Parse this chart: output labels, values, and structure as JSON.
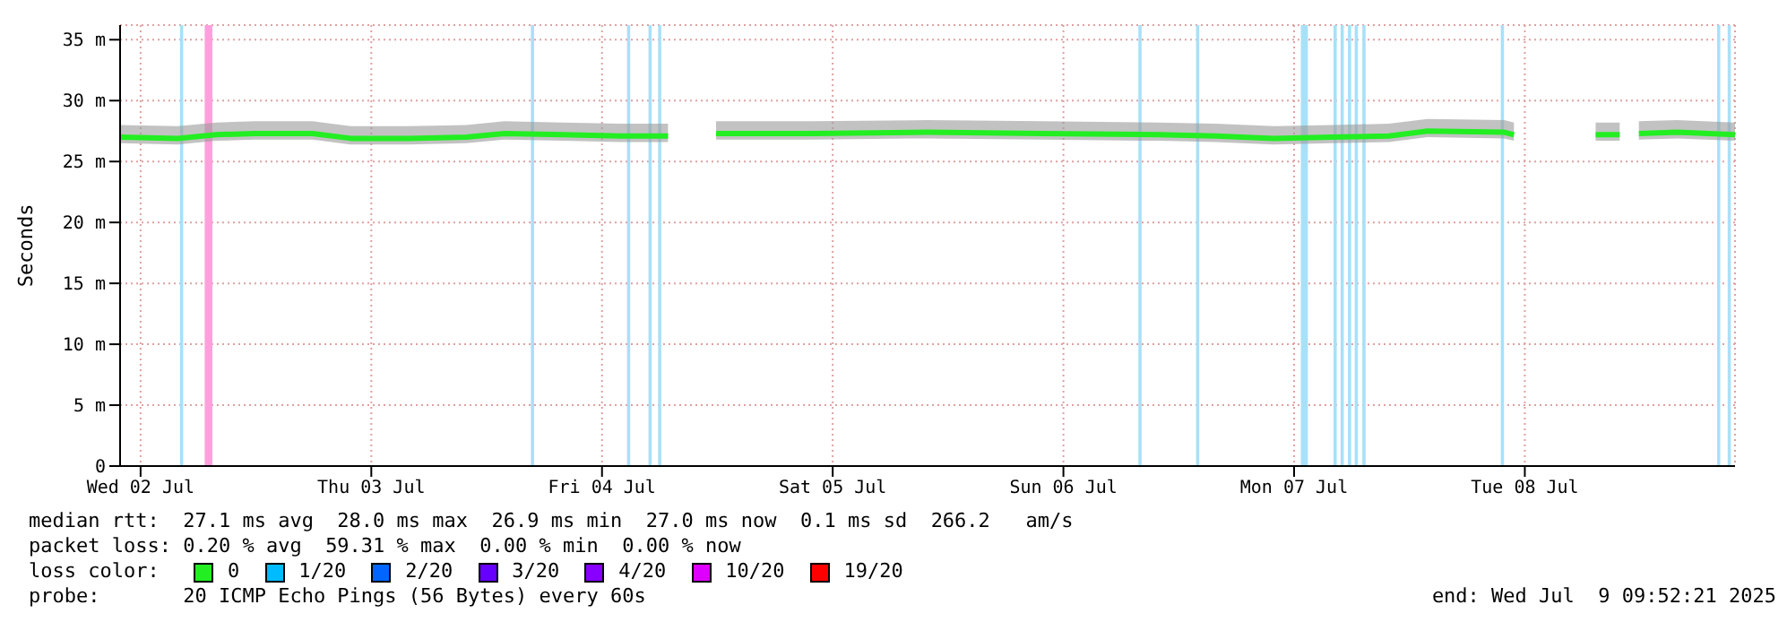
{
  "chart_data": {
    "type": "line",
    "ylabel": "Seconds",
    "x": [
      "2025-07-02T09:52",
      "2025-07-02T15:52",
      "2025-07-02T19:52",
      "2025-07-02T23:52",
      "2025-07-03T05:52",
      "2025-07-03T09:52",
      "2025-07-03T15:52",
      "2025-07-03T21:52",
      "2025-07-04T01:52",
      "2025-07-04T07:52",
      "2025-07-04T13:52",
      "2025-07-04T18:52",
      "2025-07-04T19:52",
      "2025-07-04T23:52",
      "2025-07-05T09:52",
      "2025-07-05T21:52",
      "2025-07-06T09:52",
      "2025-07-06T21:52",
      "2025-07-07T03:52",
      "2025-07-07T09:52",
      "2025-07-07T15:52",
      "2025-07-07T21:52",
      "2025-07-08T01:52",
      "2025-07-08T09:52",
      "2025-07-08T10:52",
      "2025-07-08T11:52",
      "2025-07-08T19:22",
      "2025-07-08T21:52",
      "2025-07-08T22:52",
      "2025-07-08T23:52",
      "2025-07-09T03:52",
      "2025-07-09T09:52"
    ],
    "series": [
      {
        "name": "0",
        "color": "#22ee22",
        "values": [
          27.0,
          26.9,
          27.2,
          27.3,
          27.3,
          26.9,
          26.9,
          27.0,
          27.3,
          27.2,
          27.1,
          27.1,
          null,
          27.3,
          27.3,
          27.4,
          27.3,
          27.2,
          27.1,
          26.9,
          27.0,
          27.1,
          27.5,
          27.4,
          27.2,
          null,
          27.2,
          27.2,
          null,
          27.3,
          27.4,
          27.2
        ],
        "lower": [
          26.5,
          26.4,
          26.7,
          26.8,
          26.8,
          26.4,
          26.4,
          26.5,
          26.8,
          26.7,
          26.6,
          26.6,
          null,
          26.8,
          26.8,
          26.9,
          26.8,
          26.7,
          26.6,
          26.4,
          26.5,
          26.6,
          27.0,
          26.9,
          26.7,
          null,
          26.7,
          26.7,
          null,
          26.8,
          26.9,
          26.7
        ],
        "upper": [
          28.0,
          27.9,
          28.2,
          28.3,
          28.3,
          27.9,
          27.9,
          28.0,
          28.3,
          28.2,
          28.1,
          28.1,
          null,
          28.3,
          28.3,
          28.4,
          28.3,
          28.2,
          28.1,
          27.9,
          28.0,
          28.1,
          28.5,
          28.4,
          28.2,
          null,
          28.2,
          28.2,
          null,
          28.3,
          28.4,
          28.2
        ]
      },
      {
        "name": "1/20",
        "color": "#00bbff",
        "values": [
          null,
          null,
          null,
          null,
          null,
          null,
          null,
          null,
          null,
          null,
          null,
          null,
          null,
          null,
          null,
          null,
          null,
          null,
          null,
          null,
          null,
          null,
          null,
          null,
          null,
          null,
          null,
          null,
          null,
          null,
          null,
          null
        ]
      },
      {
        "name": "2/20",
        "color": "#0066ff",
        "values": [
          null,
          null,
          null,
          null,
          null,
          null,
          null,
          null,
          null,
          null,
          null,
          null,
          null,
          null,
          null,
          null,
          null,
          null,
          null,
          null,
          null,
          null,
          null,
          null,
          null,
          null,
          null,
          null,
          null,
          null,
          null,
          null
        ]
      },
      {
        "name": "3/20",
        "color": "#6600ff",
        "values": [
          null,
          null,
          null,
          null,
          null,
          null,
          null,
          null,
          null,
          null,
          null,
          null,
          null,
          null,
          null,
          null,
          null,
          null,
          null,
          null,
          null,
          null,
          null,
          null,
          null,
          null,
          null,
          null,
          null,
          null,
          null,
          null
        ]
      },
      {
        "name": "4/20",
        "color": "#8800ff",
        "values": [
          null,
          null,
          null,
          null,
          null,
          null,
          null,
          null,
          null,
          null,
          null,
          null,
          null,
          null,
          null,
          null,
          null,
          null,
          null,
          null,
          null,
          null,
          null,
          null,
          null,
          null,
          null,
          null,
          null,
          null,
          null,
          null
        ]
      },
      {
        "name": "10/20",
        "color": "#dd00ff",
        "values": [
          null,
          null,
          null,
          null,
          null,
          null,
          null,
          null,
          null,
          null,
          null,
          null,
          null,
          null,
          null,
          null,
          null,
          null,
          null,
          null,
          null,
          null,
          null,
          null,
          null,
          null,
          null,
          null,
          null,
          null,
          null,
          null
        ]
      },
      {
        "name": "19/20",
        "color": "#ff0000",
        "values": [
          null,
          null,
          null,
          null,
          null,
          null,
          null,
          null,
          null,
          null,
          null,
          null,
          null,
          null,
          null,
          null,
          null,
          null,
          null,
          null,
          null,
          null,
          null,
          null,
          null,
          null,
          null,
          null,
          null,
          null,
          null,
          null
        ]
      }
    ],
    "xlim": [
      "2025-07-02T09:52",
      "2025-07-09T09:52"
    ],
    "xticks": [
      {
        "value": "2025-07-02T12:00",
        "label": "Wed 02 Jul"
      },
      {
        "value": "2025-07-03T12:00",
        "label": "Thu 03 Jul"
      },
      {
        "value": "2025-07-04T12:00",
        "label": "Fri 04 Jul"
      },
      {
        "value": "2025-07-05T12:00",
        "label": "Sat 05 Jul"
      },
      {
        "value": "2025-07-06T12:00",
        "label": "Sun 06 Jul"
      },
      {
        "value": "2025-07-07T12:00",
        "label": "Mon 07 Jul"
      },
      {
        "value": "2025-07-08T12:00",
        "label": "Tue 08 Jul"
      }
    ],
    "ylim": [
      0,
      36.2
    ],
    "yticks": [
      0,
      {
        "value": 5,
        "label": "5 m"
      },
      {
        "value": 10,
        "label": "10 m"
      },
      {
        "value": 15,
        "label": "15 m"
      },
      {
        "value": 20,
        "label": "20 m"
      },
      {
        "value": 25,
        "label": "25 m"
      },
      {
        "value": 30,
        "label": "30 m"
      },
      {
        "value": 35,
        "label": "35 m"
      }
    ],
    "grid": true,
    "legend": "bottom",
    "legend_title": "loss color:",
    "marker": "none",
    "line_style": "solid",
    "bands": [
      {
        "axis": "x",
        "from": "2025-07-02T16:06",
        "to": "2025-07-02T16:26",
        "color": "#a8e0f8"
      },
      {
        "axis": "x",
        "from": "2025-07-02T18:40",
        "to": "2025-07-02T19:28",
        "color": "#ffa0dc"
      },
      {
        "axis": "x",
        "from": "2025-07-04T04:36",
        "to": "2025-07-04T04:56",
        "color": "#a8e0f8"
      },
      {
        "axis": "x",
        "from": "2025-07-04T14:36",
        "to": "2025-07-04T14:56",
        "color": "#a8e0f8"
      },
      {
        "axis": "x",
        "from": "2025-07-04T16:50",
        "to": "2025-07-04T17:10",
        "color": "#a8e0f8"
      },
      {
        "axis": "x",
        "from": "2025-07-04T17:50",
        "to": "2025-07-04T18:10",
        "color": "#a8e0f8"
      },
      {
        "axis": "x",
        "from": "2025-07-06T19:48",
        "to": "2025-07-06T20:08",
        "color": "#a8e0f8"
      },
      {
        "axis": "x",
        "from": "2025-07-07T01:48",
        "to": "2025-07-07T02:08",
        "color": "#a8e0f8"
      },
      {
        "axis": "x",
        "from": "2025-07-07T12:42",
        "to": "2025-07-07T13:26",
        "color": "#a8e0f8"
      },
      {
        "axis": "x",
        "from": "2025-07-07T16:06",
        "to": "2025-07-07T16:26",
        "color": "#a8e0f8"
      },
      {
        "axis": "x",
        "from": "2025-07-07T16:50",
        "to": "2025-07-07T17:10",
        "color": "#a8e0f8"
      },
      {
        "axis": "x",
        "from": "2025-07-07T17:36",
        "to": "2025-07-07T17:56",
        "color": "#a8e0f8"
      },
      {
        "axis": "x",
        "from": "2025-07-07T18:18",
        "to": "2025-07-07T18:38",
        "color": "#a8e0f8"
      },
      {
        "axis": "x",
        "from": "2025-07-07T19:06",
        "to": "2025-07-07T19:26",
        "color": "#a8e0f8"
      },
      {
        "axis": "x",
        "from": "2025-07-08T09:30",
        "to": "2025-07-08T09:50",
        "color": "#a8e0f8"
      },
      {
        "axis": "x",
        "from": "2025-07-09T08:00",
        "to": "2025-07-09T08:20",
        "color": "#a8e0f8"
      },
      {
        "axis": "x",
        "from": "2025-07-09T09:06",
        "to": "2025-07-09T09:26",
        "color": "#a8e0f8"
      }
    ],
    "annotations": [
      "median rtt:  27.1 ms avg  28.0 ms max  26.9 ms min  27.0 ms now  0.1 ms sd  266.2   am/s",
      "packet loss: 0.20 % avg  59.31 % max  0.00 % min  0.00 % now",
      "probe:       20 ICMP Echo Pings (56 Bytes) every 60s",
      "end: Wed Jul  9 09:52:21 2025"
    ]
  }
}
